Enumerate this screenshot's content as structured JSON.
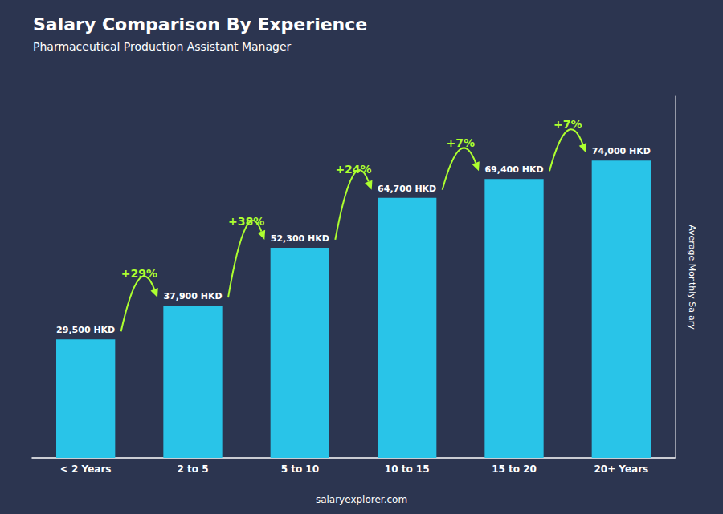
{
  "chart_data": {
    "type": "bar",
    "title": "Salary Comparison By Experience",
    "subtitle": "Pharmaceutical Production Assistant Manager",
    "ylabel": "Average Monthly Salary",
    "footer": "salaryexplorer.com",
    "categories": [
      "< 2 Years",
      "2 to 5",
      "5 to 10",
      "10 to 15",
      "15 to 20",
      "20+ Years"
    ],
    "values": [
      29500,
      37900,
      52300,
      64700,
      69400,
      74000
    ],
    "value_labels": [
      "29,500 HKD",
      "37,900 HKD",
      "52,300 HKD",
      "64,700 HKD",
      "69,400 HKD",
      "74,000 HKD"
    ],
    "data_labels": true,
    "color": "#29C4E8",
    "annotations": [
      {
        "text": "+29%",
        "from": "< 2 Years",
        "to": "2 to 5",
        "color": "#ADFF2F"
      },
      {
        "text": "+38%",
        "from": "2 to 5",
        "to": "5 to 10",
        "color": "#ADFF2F"
      },
      {
        "text": "+24%",
        "from": "5 to 10",
        "to": "10 to 15",
        "color": "#ADFF2F"
      },
      {
        "text": "+7%",
        "from": "10 to 15",
        "to": "15 to 20",
        "color": "#ADFF2F"
      },
      {
        "text": "+7%",
        "from": "15 to 20",
        "to": "20+ Years",
        "color": "#ADFF2F"
      }
    ],
    "ylim": [
      0,
      90000
    ],
    "grid": false,
    "tick_labels": "x"
  }
}
